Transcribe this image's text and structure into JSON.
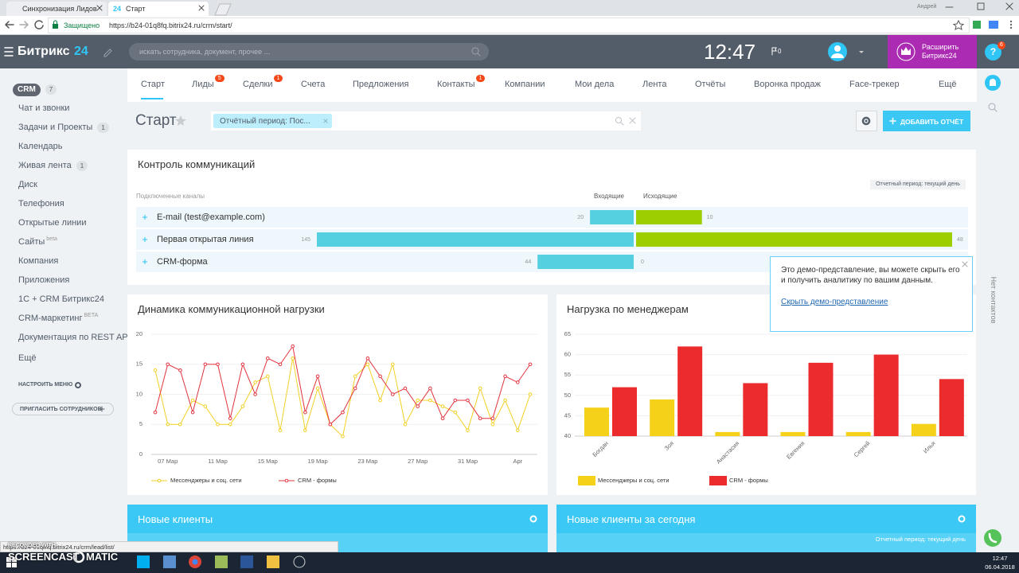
{
  "browser": {
    "tabs": [
      {
        "label": "Синхронизация Лидов"
      },
      {
        "icon": "24",
        "label": "Старт"
      }
    ],
    "user": "Андрей",
    "secure": "Защищено",
    "url": "https://b24-01q8fq.bitrix24.ru/crm/start/",
    "status_url": "https://b24-01q8fq.bitrix24.ru/crm/lead/list/"
  },
  "header": {
    "logo": "Битрикс",
    "logo_num": "24",
    "search": "искать сотрудника, документ, прочее ...",
    "time": "12:47",
    "notifications": "0",
    "upgrade": "Расширить Битрикс24",
    "help": "?",
    "help_badge": "6"
  },
  "sidebar": {
    "items": [
      {
        "label": "CRM",
        "counter": 7
      },
      {
        "label": "Чат и звонки"
      },
      {
        "label": "Задачи и Проекты",
        "counter": 1
      },
      {
        "label": "Календарь"
      },
      {
        "label": "Живая лента",
        "counter": 1
      },
      {
        "label": "Диск"
      },
      {
        "label": "Телефония"
      },
      {
        "label": "Открытые линии"
      },
      {
        "label": "Сайты",
        "tag": "beta"
      },
      {
        "label": "Компания"
      },
      {
        "label": "Приложения"
      },
      {
        "label": "1С + CRM Битрикс24"
      },
      {
        "label": "CRM-маркетинг",
        "tag": "BETA"
      },
      {
        "label": "Документация по REST API"
      },
      {
        "label": "Ещё"
      }
    ],
    "configure": "НАСТРОИТЬ МЕНЮ",
    "invite": "ПРИГЛАСИТЬ СОТРУДНИКОВ"
  },
  "tabs": [
    {
      "label": "Старт",
      "active": true
    },
    {
      "label": "Лиды",
      "counter": 5
    },
    {
      "label": "Сделки",
      "counter": 1
    },
    {
      "label": "Счета"
    },
    {
      "label": "Предложения"
    },
    {
      "label": "Контакты",
      "counter": 1
    },
    {
      "label": "Компании"
    },
    {
      "label": "Мои дела"
    },
    {
      "label": "Лента"
    },
    {
      "label": "Отчёты"
    },
    {
      "label": "Воронка продаж"
    },
    {
      "label": "Face-трекер"
    },
    {
      "label": "Ещё"
    }
  ],
  "page": {
    "title": "Старт",
    "filter": "Отчётный период: Пос...",
    "add_report": "ДОБАВИТЬ ОТЧЁТ"
  },
  "communications": {
    "title": "Контроль коммуникаций",
    "period": "Отчетный период: текущий день",
    "columns": [
      "Подключенные каналы",
      "Входящие",
      "Исходящие"
    ],
    "rows": [
      {
        "channel": "E-mail (test@example.com)",
        "incoming": 20,
        "outgoing": 10
      },
      {
        "channel": "Первая открытая линия",
        "incoming": 145,
        "outgoing": 48
      },
      {
        "channel": "CRM-форма",
        "incoming": 44,
        "outgoing": 0
      }
    ],
    "incoming_color": "#55d0e0",
    "outgoing_color": "#9dcf00"
  },
  "demo_popup": {
    "text": "Это демо-представление, вы можете скрыть его и получить аналитику по вашим данным.",
    "link": "Скрыть демо-представление"
  },
  "side_note": "Нет контактов",
  "chart_data": [
    {
      "type": "line",
      "title": "Динамика коммуникационной нагрузки",
      "categories": [
        null,
        "07 Мар",
        null,
        null,
        null,
        "11 Мар",
        null,
        null,
        null,
        "15 Мар",
        null,
        null,
        null,
        "19 Мар",
        null,
        null,
        null,
        "23 Мар",
        null,
        null,
        null,
        "27 Мар",
        null,
        null,
        null,
        "31 Мар",
        null,
        null,
        null,
        "Apr",
        null
      ],
      "series": [
        {
          "name": "Мессенджеры и соц. сети",
          "color": "#f2d024",
          "values": [
            14,
            5,
            5,
            9,
            8,
            5,
            5,
            8,
            12,
            13,
            4,
            16,
            4,
            11,
            5,
            3,
            13,
            15,
            9,
            15,
            5,
            9,
            9,
            8,
            7,
            4,
            11,
            5,
            9,
            4,
            10
          ]
        },
        {
          "name": "CRM - формы",
          "color": "#e2333d",
          "values": [
            7,
            15,
            14,
            7,
            15,
            15,
            6,
            15,
            10,
            16,
            15,
            18,
            7,
            13,
            5,
            7,
            11,
            16,
            13,
            10,
            11,
            8,
            11,
            6,
            9,
            9,
            6,
            6,
            13,
            12,
            15
          ]
        }
      ],
      "ylim": [
        0,
        20
      ],
      "yticks": [
        0,
        5,
        10,
        15,
        20
      ],
      "grid": true
    },
    {
      "type": "bar",
      "title": "Нагрузка по менеджерам",
      "categories": [
        "Богдан",
        "Зоя",
        "Анастасия",
        "Евгения",
        "Сергей",
        "Илья"
      ],
      "series": [
        {
          "name": "Мессенджеры и соц. сети",
          "color": "#f5d11a",
          "values": [
            47,
            49,
            41,
            41,
            41,
            43
          ]
        },
        {
          "name": "CRM - формы",
          "color": "#ec2c2c",
          "values": [
            52,
            62,
            53,
            58,
            60,
            54
          ]
        }
      ],
      "ylim": [
        40,
        65
      ],
      "yticks": [
        40,
        45,
        50,
        55,
        60,
        65
      ],
      "grid": true
    }
  ],
  "bottom_widgets": [
    {
      "title": "Новые клиенты"
    },
    {
      "title": "Новые клиенты за сегодня",
      "period": "Отчетный период: текущий день"
    }
  ],
  "taskbar": {
    "time": "12:47",
    "date": "06.04.2018"
  },
  "watermark": {
    "top": "RECORDED WITH",
    "left": "SCREENCAST",
    "right": "MATIC"
  }
}
